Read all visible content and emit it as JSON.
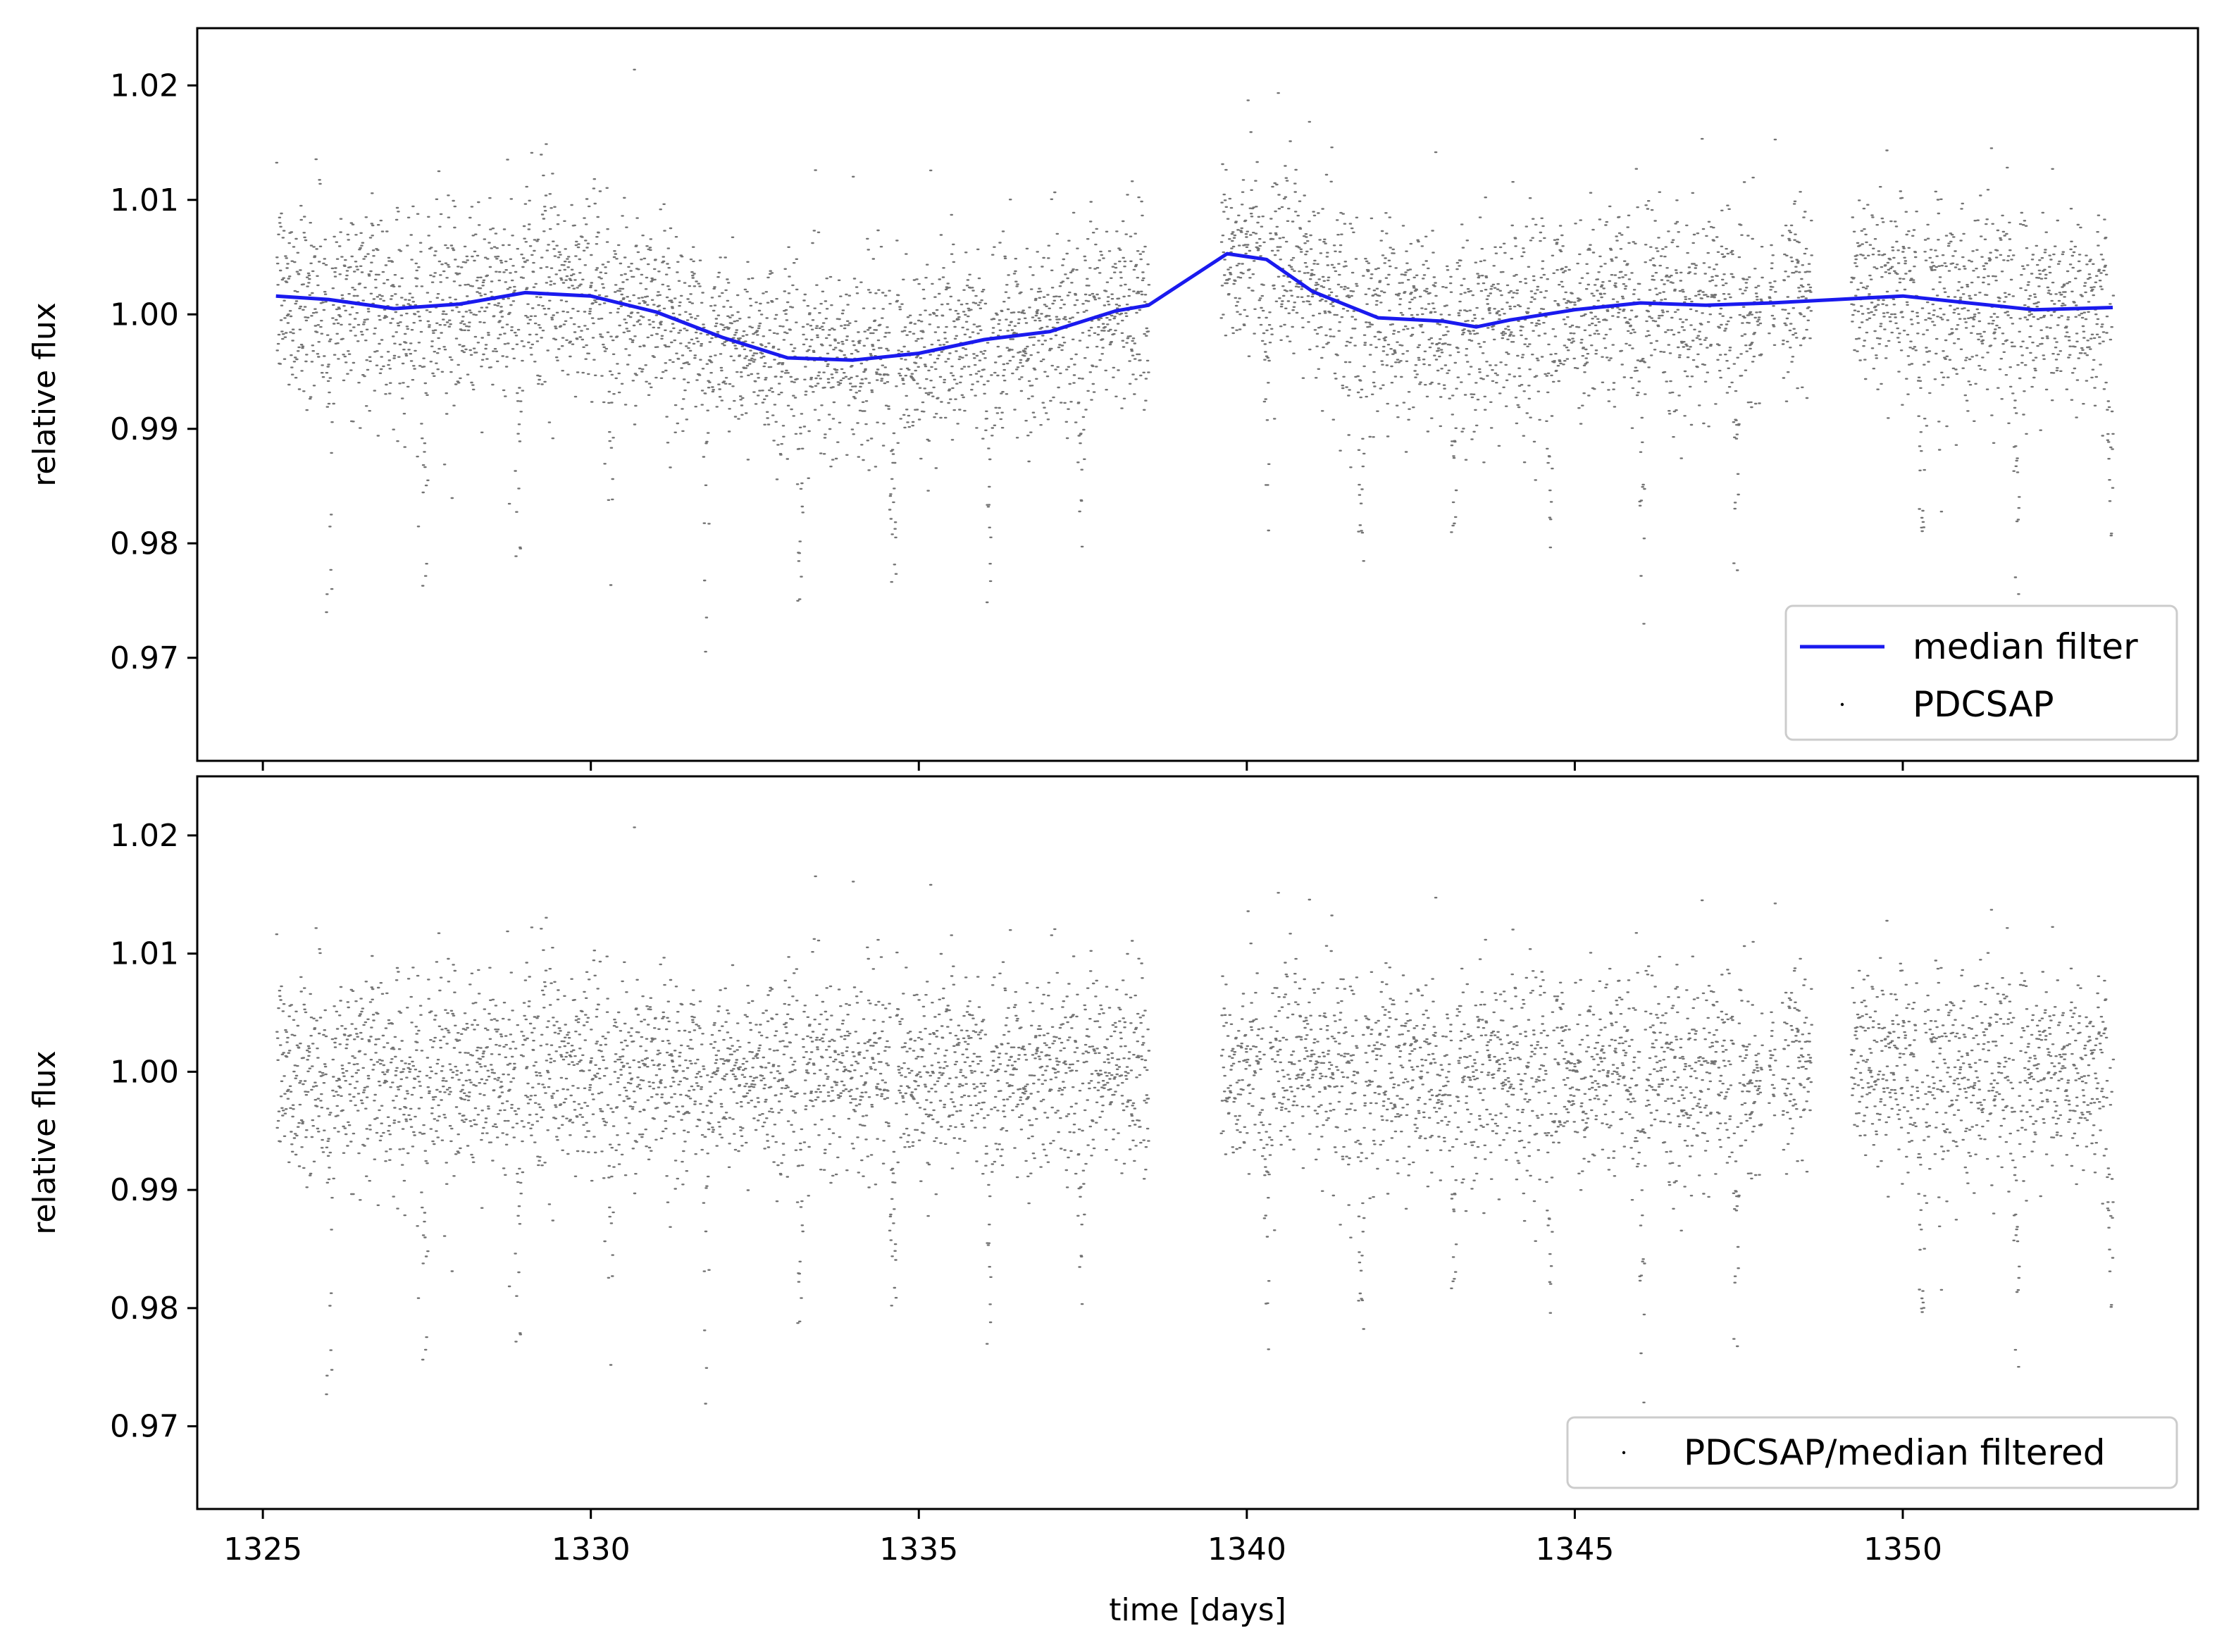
{
  "figure": {
    "xlabel": "time [days]",
    "ylabel": "relative flux"
  },
  "colors": {
    "points": "#000000",
    "median_line": "#1a1aee",
    "axes": "#000000",
    "legend_border": "#cccccc"
  },
  "chart_data": [
    {
      "type": "scatter",
      "panel": "top",
      "xlabel": "",
      "ylabel": "relative flux",
      "xlim": [
        1324.0,
        1354.5
      ],
      "ylim": [
        0.961,
        1.025
      ],
      "xticks": [
        1325,
        1330,
        1335,
        1340,
        1345,
        1350
      ],
      "xtick_labels_shown": false,
      "yticks": [
        0.97,
        0.98,
        0.99,
        1.0,
        1.01,
        1.02
      ],
      "ytick_labels": [
        "0.97",
        "0.98",
        "0.99",
        "1.00",
        "1.01",
        "1.02"
      ],
      "legend": {
        "placement": "lower-right",
        "entries": [
          "median filter",
          "PDCSAP"
        ]
      },
      "series": [
        {
          "name": "median filter",
          "kind": "line",
          "x": [
            1325.2,
            1326.0,
            1327.0,
            1328.0,
            1329.0,
            1330.0,
            1331.0,
            1332.0,
            1333.0,
            1334.0,
            1335.0,
            1336.0,
            1337.0,
            1338.0,
            1338.5,
            1339.7,
            1340.3,
            1341.0,
            1342.0,
            1343.0,
            1343.5,
            1344.0,
            1345.0,
            1346.0,
            1347.0,
            1348.0,
            1349.0,
            1350.0,
            1351.0,
            1352.0,
            1353.2
          ],
          "y": [
            1.0016,
            1.0013,
            1.0005,
            1.0009,
            1.0019,
            1.0016,
            1.0002,
            0.998,
            0.9962,
            0.996,
            0.9966,
            0.9978,
            0.9985,
            1.0003,
            1.0008,
            1.0053,
            1.0048,
            1.002,
            0.9997,
            0.9994,
            0.9989,
            0.9995,
            1.0004,
            1.001,
            1.0008,
            1.001,
            1.0013,
            1.0016,
            1.001,
            1.0004,
            1.0006
          ]
        },
        {
          "name": "PDCSAP",
          "kind": "scatter",
          "generated_from": "baseline + noise",
          "segments": [
            [
              1325.2,
              1338.5
            ],
            [
              1339.6,
              1353.2
            ]
          ],
          "gaps": [
            [
              1347.85,
              1347.95
            ],
            [
              1348.05,
              1348.15
            ],
            [
              1348.6,
              1349.2
            ]
          ],
          "scatter_sigma": 0.0042,
          "transit_times": [
            1326.0,
            1327.45,
            1328.88,
            1330.3,
            1331.75,
            1333.18,
            1334.6,
            1336.05,
            1337.47,
            1340.3,
            1341.73,
            1343.15,
            1344.6,
            1346.02,
            1347.45,
            1348.85,
            1350.28,
            1351.72,
            1353.15
          ],
          "transit_depth": 0.021
        }
      ]
    },
    {
      "type": "scatter",
      "panel": "bottom",
      "xlabel": "time [days]",
      "ylabel": "relative flux",
      "xlim": [
        1324.0,
        1354.5
      ],
      "ylim": [
        0.963,
        1.025
      ],
      "xticks": [
        1325,
        1330,
        1335,
        1340,
        1345,
        1350
      ],
      "xtick_labels": [
        "1325",
        "1330",
        "1335",
        "1340",
        "1345",
        "1350"
      ],
      "yticks": [
        0.97,
        0.98,
        0.99,
        1.0,
        1.01,
        1.02
      ],
      "ytick_labels": [
        "0.97",
        "0.98",
        "0.99",
        "1.00",
        "1.01",
        "1.02"
      ],
      "legend": {
        "placement": "lower-right",
        "entries": [
          "PDCSAP/median filtered"
        ]
      },
      "series": [
        {
          "name": "PDCSAP/median filtered",
          "kind": "scatter",
          "generated_from": "PDCSAP divided by median filter",
          "baseline": 1.0
        }
      ]
    }
  ]
}
